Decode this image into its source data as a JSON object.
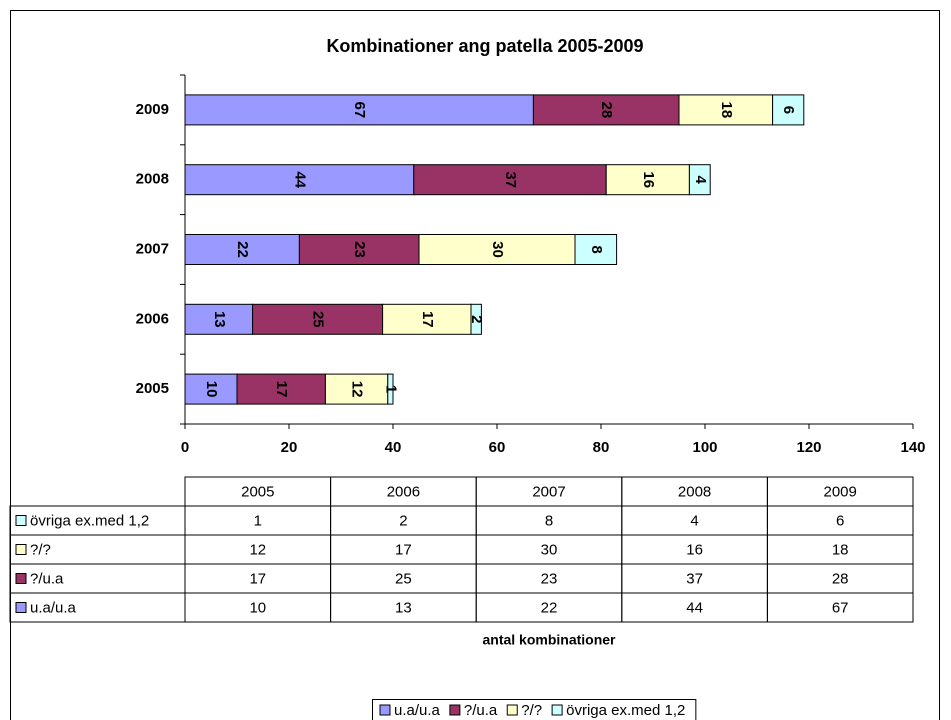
{
  "chart_data": {
    "type": "bar",
    "orientation": "horizontal",
    "stacked": true,
    "title": "Kombinationer ang patella 2005-2009",
    "x_label": "antal kombinationer",
    "categories": [
      "2005",
      "2006",
      "2007",
      "2008",
      "2009"
    ],
    "series": [
      {
        "name": "u.a/u.a",
        "color": "#9999ff",
        "values": [
          10,
          13,
          22,
          44,
          67
        ]
      },
      {
        "name": "?/u.a",
        "color": "#993366",
        "values": [
          17,
          25,
          23,
          37,
          28
        ]
      },
      {
        "name": "?/?",
        "color": "#ffffcc",
        "values": [
          12,
          17,
          30,
          16,
          18
        ]
      },
      {
        "name": "övriga ex.med 1,2",
        "color": "#ccffff",
        "values": [
          1,
          2,
          8,
          4,
          6
        ]
      }
    ],
    "xlim": [
      0,
      140
    ],
    "xticks": [
      0,
      20,
      40,
      60,
      80,
      100,
      120,
      140
    ],
    "data_table": true,
    "legend": "bottom"
  }
}
